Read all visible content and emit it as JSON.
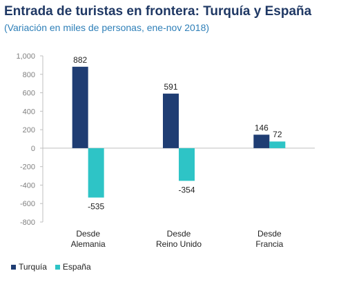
{
  "title": "Entrada de turistas en frontera: Turquía y España",
  "subtitle": "(Variación en miles de personas, ene-nov 2018)",
  "colors": {
    "turquia": "#1f3d73",
    "espana": "#2ec4c6",
    "axis": "#bfbfbf",
    "tick_text": "#7f7f7f"
  },
  "chart_data": {
    "type": "bar",
    "categories": [
      [
        "Desde",
        "Alemania"
      ],
      [
        "Desde",
        "Reino Unido"
      ],
      [
        "Desde",
        "Francia"
      ]
    ],
    "series": [
      {
        "name": "Turquía",
        "values": [
          882,
          591,
          146
        ]
      },
      {
        "name": "España",
        "values": [
          -535,
          -354,
          72
        ]
      }
    ],
    "yticks": [
      1000,
      800,
      600,
      400,
      200,
      0,
      -200,
      -400,
      -600,
      -800
    ],
    "ytick_labels": [
      "1,000",
      "800",
      "600",
      "400",
      "200",
      "0",
      "-200",
      "-400",
      "-600",
      "-800"
    ],
    "ylim": [
      -800,
      1000
    ],
    "grid": false,
    "legend_position": "bottom-left"
  }
}
